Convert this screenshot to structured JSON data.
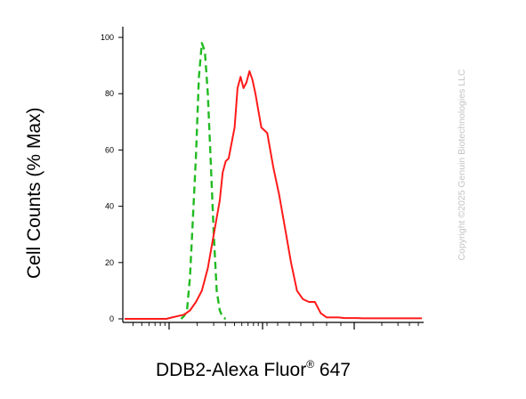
{
  "chart_data": {
    "type": "line",
    "xlabel": {
      "text": "DDB2-Alexa Fluor",
      "sup": "®",
      "suffix": " 647"
    },
    "ylabel": "Cell Counts (% Max)",
    "ylim": [
      0,
      100
    ],
    "yticks": [
      "0",
      "20",
      "40",
      "60",
      "80",
      "100"
    ],
    "xlim": [
      0,
      100
    ],
    "series": [
      {
        "style": "dashed",
        "color": "#22bb22",
        "x": [
          19,
          20,
          21,
          22,
          23,
          24,
          25,
          26,
          27,
          28,
          29,
          30,
          31,
          32,
          33,
          34
        ],
        "y": [
          0,
          1,
          3,
          15,
          36,
          58,
          86,
          98,
          95,
          80,
          55,
          30,
          10,
          3,
          0.5,
          0
        ]
      },
      {
        "style": "solid",
        "color": "#ff1a1a",
        "x": [
          0,
          14,
          16,
          18,
          20,
          22,
          24,
          26,
          28,
          30,
          32,
          33,
          34,
          35,
          37,
          38,
          39,
          40,
          41,
          42,
          43,
          44,
          46,
          48,
          50,
          52,
          54,
          56,
          58,
          60,
          62,
          64,
          66,
          68,
          70,
          72,
          74,
          76,
          78,
          80,
          85,
          90,
          95,
          100
        ],
        "y": [
          0,
          0,
          0.5,
          1,
          1.5,
          3,
          6,
          10,
          18,
          30,
          42,
          52,
          56,
          57,
          68,
          82,
          86,
          82,
          84,
          88,
          85,
          80,
          68,
          66,
          54,
          44,
          32,
          20,
          10,
          7,
          6,
          6,
          2,
          0.5,
          0.5,
          0.5,
          0.3,
          0.3,
          0.3,
          0.2,
          0.2,
          0.2,
          0.2,
          0.2
        ]
      }
    ]
  },
  "watermark": "Copyright ©2025 Genuin Biotechnologies LLC"
}
